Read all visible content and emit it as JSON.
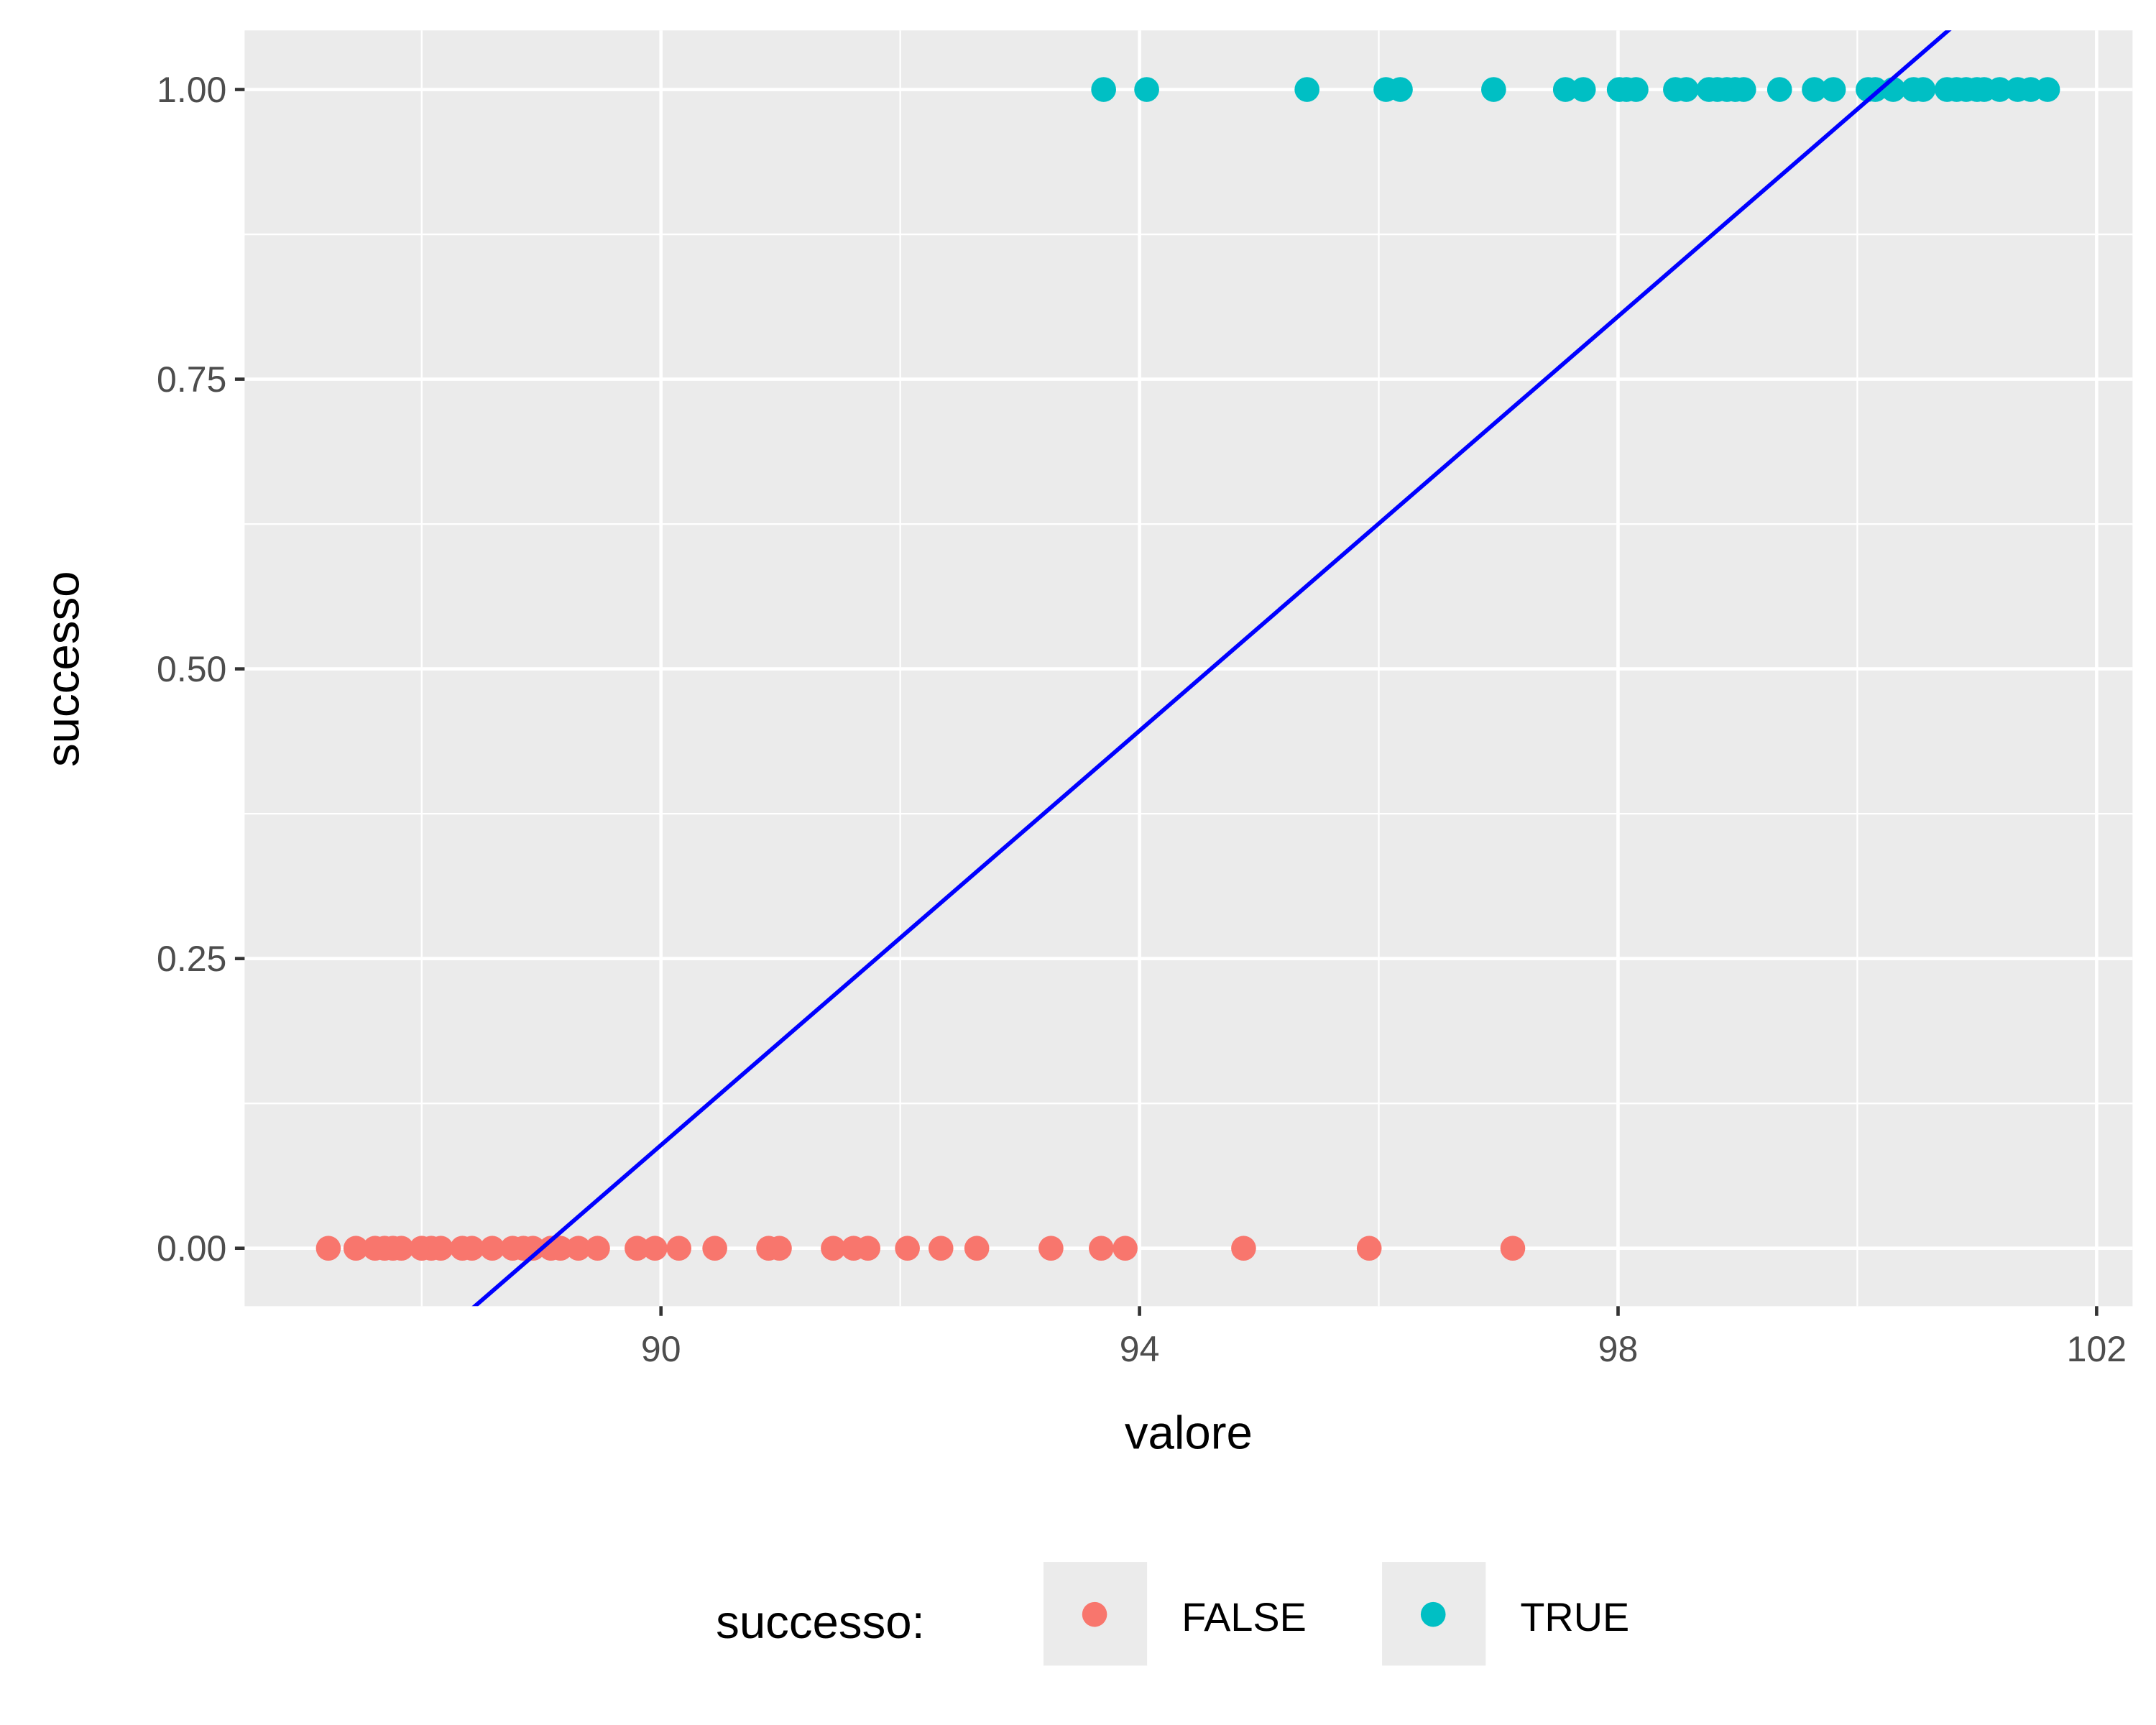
{
  "chart_data": {
    "type": "scatter",
    "title": "",
    "xlabel": "valore",
    "ylabel": "successo",
    "xlim": [
      86.52,
      102.3
    ],
    "ylim": [
      -0.05,
      1.051
    ],
    "x_ticks": [
      90,
      94,
      98,
      102
    ],
    "x_tick_labels": [
      "90",
      "94",
      "98",
      "102"
    ],
    "x_minor": [
      88,
      92,
      96,
      100
    ],
    "y_ticks": [
      0,
      0.25,
      0.5,
      0.75,
      1
    ],
    "y_tick_labels": [
      "0.00",
      "0.25",
      "0.50",
      "0.75",
      "1.00"
    ],
    "y_minor": [
      0.125,
      0.375,
      0.625,
      0.875
    ],
    "grid": true,
    "legend": {
      "title": "successo:",
      "position": "bottom",
      "entries": [
        "FALSE",
        "TRUE"
      ]
    },
    "series": [
      {
        "name": "FALSE",
        "color": "#F8766D",
        "y": 0,
        "x": [
          87.22,
          87.45,
          87.61,
          87.69,
          87.76,
          87.83,
          88.0,
          88.08,
          88.16,
          88.34,
          88.42,
          88.59,
          88.76,
          88.85,
          88.93,
          89.08,
          89.16,
          89.31,
          89.47,
          89.8,
          89.95,
          90.15,
          90.45,
          90.9,
          90.99,
          91.44,
          91.61,
          91.73,
          92.06,
          92.34,
          92.64,
          93.26,
          93.68,
          93.88,
          94.87,
          95.92,
          97.12
        ]
      },
      {
        "name": "TRUE",
        "color": "#00BFC4",
        "y": 1,
        "x": [
          93.7,
          94.06,
          95.4,
          96.06,
          96.18,
          96.96,
          97.56,
          97.71,
          98.01,
          98.07,
          98.15,
          98.48,
          98.57,
          98.76,
          98.83,
          98.91,
          98.98,
          99.05,
          99.35,
          99.64,
          99.8,
          100.09,
          100.15,
          100.3,
          100.47,
          100.55,
          100.75,
          100.83,
          100.91,
          101.0,
          101.06,
          101.19,
          101.34,
          101.45,
          101.59
        ]
      }
    ],
    "fit_line": {
      "type": "linear",
      "slope": 0.0894,
      "intercept": -7.957,
      "color": "#0000FF"
    }
  }
}
